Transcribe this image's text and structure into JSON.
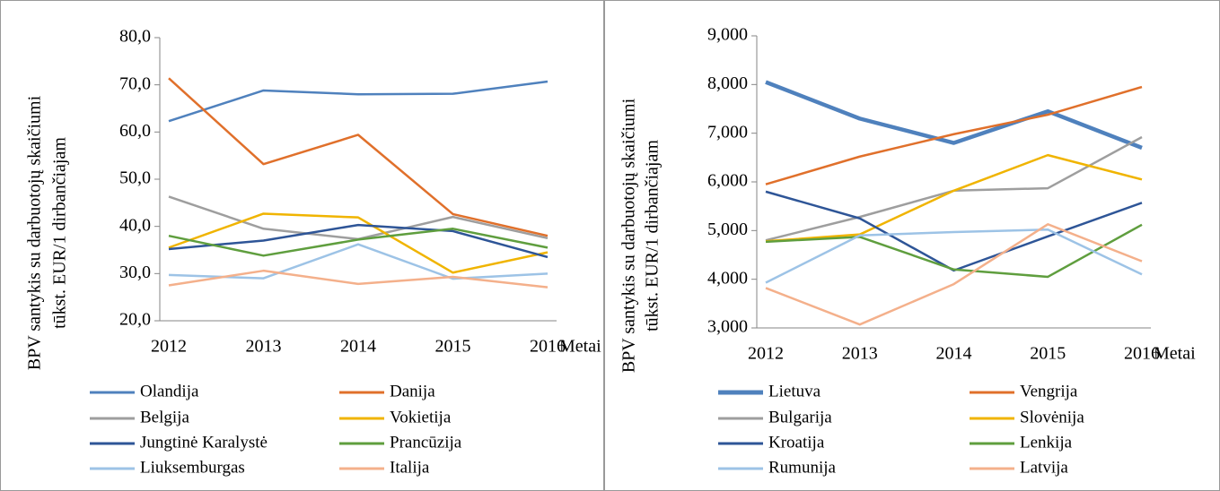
{
  "chart_data": [
    {
      "type": "line",
      "ylabel": [
        "BPV santykis su darbuotojų skaičiumi",
        "tūkst. EUR/1 dirbančiajam"
      ],
      "xlabel": "Metai",
      "categories": [
        "2012",
        "2013",
        "2014",
        "2015",
        "2016"
      ],
      "ylim": [
        20,
        80
      ],
      "yticks": [
        {
          "value": 20,
          "label": "20,0"
        },
        {
          "value": 30,
          "label": "30,0"
        },
        {
          "value": 40,
          "label": "40,0"
        },
        {
          "value": 50,
          "label": "50,0"
        },
        {
          "value": 60,
          "label": "60,0"
        },
        {
          "value": 70,
          "label": "70,0"
        },
        {
          "value": 80,
          "label": "80,0"
        }
      ],
      "series": [
        {
          "name": "Olandija",
          "color": "#4f81bd",
          "values": [
            62.3,
            68.8,
            68.0,
            68.1,
            70.7
          ]
        },
        {
          "name": "Danija",
          "color": "#e0702b",
          "values": [
            71.4,
            53.2,
            59.4,
            42.6,
            38.0
          ]
        },
        {
          "name": "Belgija",
          "color": "#9e9e9e",
          "values": [
            46.3,
            39.5,
            37.3,
            42.0,
            37.5
          ]
        },
        {
          "name": "Vokietija",
          "color": "#f0b400",
          "values": [
            35.5,
            42.7,
            41.9,
            30.2,
            34.5
          ]
        },
        {
          "name": "Jungtinė Karalystė",
          "color": "#2e5597",
          "values": [
            35.2,
            37.0,
            40.3,
            39.0,
            33.5
          ]
        },
        {
          "name": "Prancūzija",
          "color": "#5f9e3e",
          "values": [
            38.0,
            33.8,
            37.2,
            39.5,
            35.5
          ]
        },
        {
          "name": "Liuksemburgas",
          "color": "#9dc3e6",
          "values": [
            29.7,
            29.0,
            36.2,
            28.9,
            30.0
          ]
        },
        {
          "name": "Italija",
          "color": "#f4b08b",
          "values": [
            27.5,
            30.6,
            27.8,
            29.3,
            27.1
          ]
        }
      ]
    },
    {
      "type": "line",
      "ylabel": [
        "BPV santykis su darbuotojų skaičiumi",
        "tūkst. EUR/1 dirbančiajam"
      ],
      "xlabel": "Metai",
      "categories": [
        "2012",
        "2013",
        "2014",
        "2015",
        "2016"
      ],
      "ylim": [
        3,
        9
      ],
      "yticks": [
        {
          "value": 3,
          "label": "3,000"
        },
        {
          "value": 4,
          "label": "4,000"
        },
        {
          "value": 5,
          "label": "5,000"
        },
        {
          "value": 6,
          "label": "6,000"
        },
        {
          "value": 7,
          "label": "7,000"
        },
        {
          "value": 8,
          "label": "8,000"
        },
        {
          "value": 9,
          "label": "9,000"
        }
      ],
      "series": [
        {
          "name": "Lietuva",
          "color": "#4f81bd",
          "linewidth": 4.5,
          "values": [
            8.05,
            7.3,
            6.8,
            7.45,
            6.7
          ]
        },
        {
          "name": "Vengrija",
          "color": "#e0702b",
          "values": [
            5.95,
            6.52,
            6.98,
            7.38,
            7.95
          ]
        },
        {
          "name": "Bulgarija",
          "color": "#9e9e9e",
          "values": [
            4.8,
            5.28,
            5.82,
            5.87,
            6.92
          ]
        },
        {
          "name": "Slovėnija",
          "color": "#f0b400",
          "values": [
            4.78,
            4.92,
            5.82,
            6.55,
            6.05
          ]
        },
        {
          "name": "Kroatija",
          "color": "#2e5597",
          "values": [
            5.8,
            5.25,
            4.18,
            4.88,
            5.57
          ]
        },
        {
          "name": "Lenkija",
          "color": "#5f9e3e",
          "values": [
            4.77,
            4.87,
            4.2,
            4.05,
            5.12
          ]
        },
        {
          "name": "Rumunija",
          "color": "#9dc3e6",
          "values": [
            3.93,
            4.9,
            4.97,
            5.02,
            4.1
          ]
        },
        {
          "name": "Latvija",
          "color": "#f4b08b",
          "values": [
            3.82,
            3.07,
            3.9,
            5.13,
            4.37
          ]
        }
      ]
    }
  ]
}
